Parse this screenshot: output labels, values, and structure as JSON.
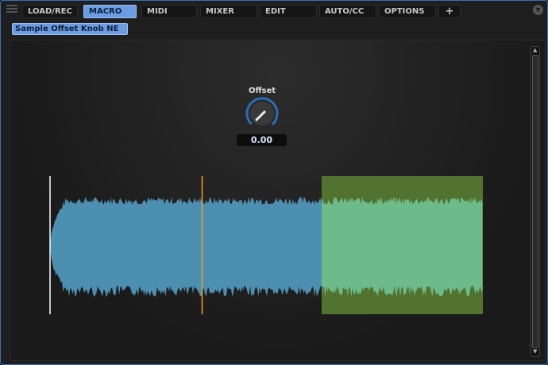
{
  "tabs": [
    {
      "label": "LOAD/REC"
    },
    {
      "label": "MACRO",
      "active": true
    },
    {
      "label": "MIDI"
    },
    {
      "label": "MIXER"
    },
    {
      "label": "EDIT"
    },
    {
      "label": "AUTO/CC"
    },
    {
      "label": "OPTIONS"
    },
    {
      "label": "+"
    }
  ],
  "macro_name": "Sample Offset Knob NE",
  "knob": {
    "label": "Offset",
    "value": "0.00"
  },
  "colors": {
    "accent": "#6b9be0",
    "waveform": "#4d8fb0",
    "selection_bg": "#52722f",
    "selection_wave": "#6dbb8a",
    "playhead": "#f0a020"
  }
}
